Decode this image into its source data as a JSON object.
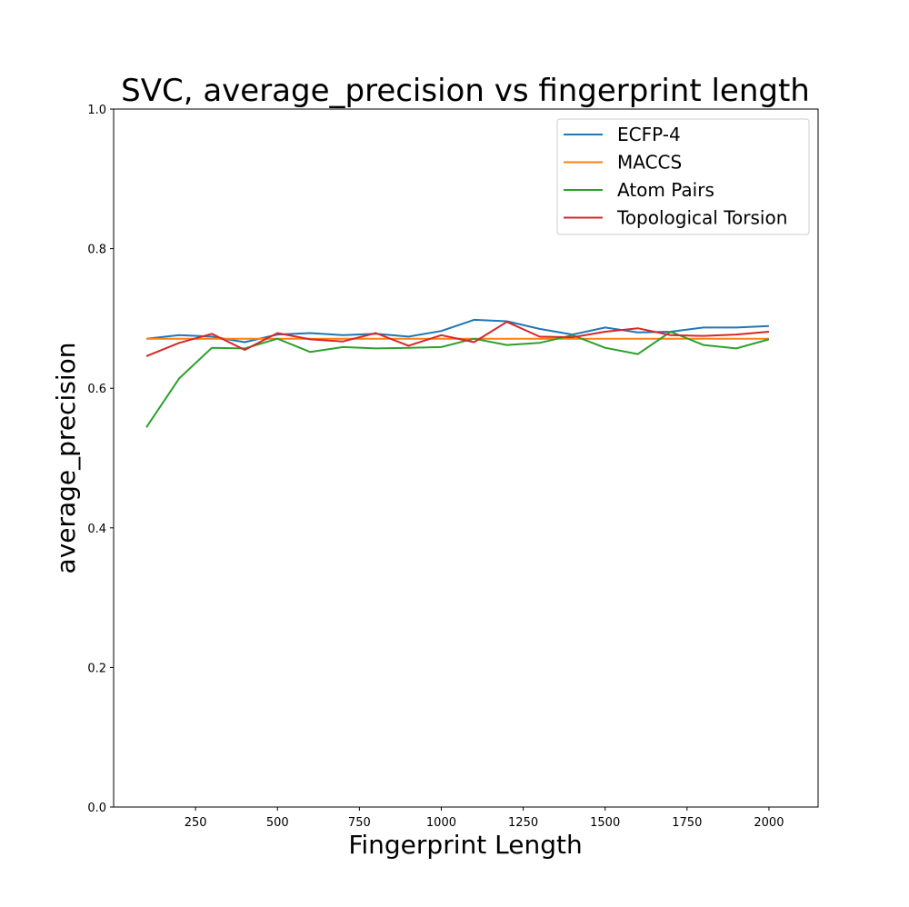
{
  "chart_data": {
    "type": "line",
    "title": "SVC, average_precision vs fingerprint length",
    "xlabel": "Fingerprint Length",
    "ylabel": "average_precision",
    "xlim": [
      0,
      2150
    ],
    "ylim": [
      0.0,
      1.0
    ],
    "xticks": [
      250,
      500,
      750,
      1000,
      1250,
      1500,
      1750,
      2000
    ],
    "yticks": [
      0.0,
      0.2,
      0.4,
      0.6,
      0.8,
      1.0
    ],
    "xtick_labels": [
      "250",
      "500",
      "750",
      "1000",
      "1250",
      "1500",
      "1750",
      "2000"
    ],
    "ytick_labels": [
      "0.0",
      "0.2",
      "0.4",
      "0.6",
      "0.8",
      "1.0"
    ],
    "grid": false,
    "legend_position": "top-right",
    "x": [
      100,
      200,
      300,
      400,
      500,
      600,
      700,
      800,
      900,
      1000,
      1100,
      1200,
      1300,
      1400,
      1500,
      1600,
      1700,
      1800,
      1900,
      2000
    ],
    "series": [
      {
        "name": "ECFP-4",
        "color": "#1f77b4",
        "values": [
          0.671,
          0.676,
          0.674,
          0.666,
          0.677,
          0.679,
          0.676,
          0.678,
          0.674,
          0.682,
          0.698,
          0.696,
          0.685,
          0.677,
          0.687,
          0.68,
          0.681,
          0.687,
          0.687,
          0.689
        ]
      },
      {
        "name": "MACCS",
        "color": "#ff7f0e",
        "values": [
          0.671,
          0.671,
          0.671,
          0.671,
          0.671,
          0.671,
          0.671,
          0.671,
          0.671,
          0.671,
          0.671,
          0.671,
          0.671,
          0.671,
          0.671,
          0.671,
          0.671,
          0.671,
          0.671,
          0.671
        ]
      },
      {
        "name": "Atom Pairs",
        "color": "#2ca02c",
        "values": [
          0.544,
          0.614,
          0.658,
          0.657,
          0.671,
          0.652,
          0.659,
          0.657,
          0.658,
          0.659,
          0.671,
          0.662,
          0.665,
          0.676,
          0.658,
          0.649,
          0.681,
          0.662,
          0.657,
          0.67
        ]
      },
      {
        "name": "Topological Torsion",
        "color": "#d62728",
        "values": [
          0.646,
          0.665,
          0.678,
          0.655,
          0.679,
          0.67,
          0.667,
          0.679,
          0.661,
          0.676,
          0.666,
          0.695,
          0.674,
          0.673,
          0.681,
          0.686,
          0.676,
          0.675,
          0.677,
          0.681
        ]
      }
    ]
  }
}
